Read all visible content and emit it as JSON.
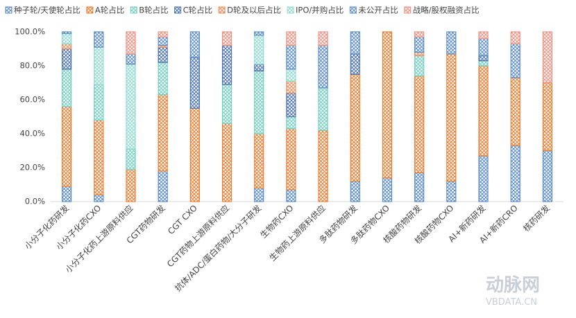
{
  "chart_data": {
    "type": "stacked-bar-floating",
    "categories": [
      "小分子化药研发",
      "小分子化药CXO",
      "小分子化药上游原料供应",
      "CGT药物研发",
      "CGT CXO",
      "CGT药物上游原料供应",
      "抗体/ADC/蛋白药物/大分子研发",
      "生物药CXO",
      "生物药上游原料供应",
      "多肽药物研发",
      "多肽药物CXO",
      "核酸药物研发",
      "核酸药物CXO",
      "AI+新药研发",
      "AI+新药CRO",
      "核药研发"
    ],
    "series": [
      {
        "name": "种子轮/天使轮占比",
        "color": "#5b8cc9",
        "values": [
          9,
          4,
          0,
          18,
          0,
          0,
          8,
          7,
          0,
          12,
          14,
          17,
          12,
          27,
          33,
          30
        ]
      },
      {
        "name": "A轮占比",
        "color": "#ed7d31",
        "values": [
          47,
          44,
          19,
          45,
          55,
          46,
          32,
          36,
          42,
          63,
          86,
          57,
          75,
          53,
          40,
          40
        ]
      },
      {
        "name": "B轮占比",
        "color": "#6fcfc0",
        "values": [
          22,
          21,
          12,
          19,
          0,
          23,
          37,
          7,
          25,
          0,
          0,
          12,
          0,
          3,
          0,
          0
        ]
      },
      {
        "name": "C轮占比",
        "color": "#4a72b0",
        "values": [
          12,
          0,
          0,
          9,
          30,
          23,
          4,
          14,
          0,
          12,
          0,
          0,
          0,
          3,
          0,
          0
        ]
      },
      {
        "name": "D轮及以后占比",
        "color": "#f08c5a",
        "values": [
          3,
          0,
          0,
          1,
          0,
          0,
          0,
          7,
          0,
          0,
          0,
          2,
          0,
          0,
          0,
          0
        ]
      },
      {
        "name": "IPO/并购占比",
        "color": "#8edbd1",
        "values": [
          6,
          22,
          50,
          0,
          0,
          0,
          17,
          7,
          0,
          0,
          0,
          0,
          0,
          0,
          0,
          0
        ]
      },
      {
        "name": "未公开占比",
        "color": "#5b8cc9",
        "values": [
          1,
          9,
          6,
          5,
          15,
          0,
          2,
          14,
          25,
          13,
          0,
          9,
          13,
          10,
          20,
          0
        ]
      },
      {
        "name": "战略/股权融资占比",
        "color": "#f09080",
        "values": [
          0,
          0,
          13,
          3,
          0,
          8,
          0,
          8,
          8,
          0,
          0,
          3,
          0,
          4,
          7,
          30
        ]
      }
    ],
    "ylim": [
      0,
      100
    ],
    "yticks": [
      {
        "value": 0,
        "label": "0.0%"
      },
      {
        "value": 20,
        "label": "20.0%"
      },
      {
        "value": 40,
        "label": "40.0%"
      },
      {
        "value": 60,
        "label": "60.0%"
      },
      {
        "value": 80,
        "label": "80.0%"
      },
      {
        "value": 100,
        "label": "100.0%"
      }
    ],
    "legend": "top",
    "watermark": {
      "logo": "动脉网",
      "site": "VBDATA.CN"
    }
  }
}
